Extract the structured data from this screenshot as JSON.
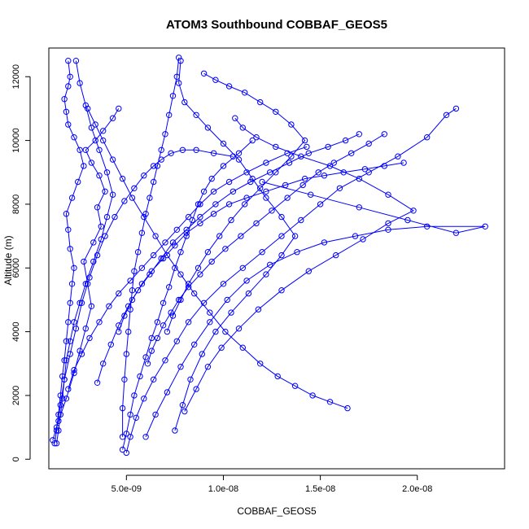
{
  "chart_data": {
    "type": "line",
    "title": "ATOM3 Southbound COBBAF_GEOS5",
    "xlabel": "COBBAF_GEOS5",
    "ylabel": "Altitude (m)",
    "xlim": [
      1e-09,
      2.45e-08
    ],
    "ylim": [
      -300,
      12900
    ],
    "x_ticks": [
      5e-09,
      1e-08,
      1.5e-08,
      2e-08
    ],
    "x_tick_labels": [
      "5.0e-09",
      "1.0e-08",
      "1.5e-08",
      "2.0e-08"
    ],
    "y_ticks": [
      0,
      2000,
      4000,
      6000,
      8000,
      10000,
      12000
    ],
    "y_tick_labels": [
      "0",
      "2000",
      "4000",
      "6000",
      "8000",
      "10000",
      "12000"
    ],
    "marker": "open-circle",
    "grid": false,
    "color": "#0000ff",
    "series": [
      {
        "x": [
          1.3e-09,
          1.4e-09,
          1.5e-09,
          1.6e-09,
          1.7e-09,
          1.8e-09,
          1.9e-09,
          2e-09,
          2.1e-09,
          2.2e-09,
          2.3e-09,
          2.1e-09,
          2e-09,
          1.9e-09,
          2.2e-09,
          2.5e-09,
          2.8e-09,
          2.6e-09,
          2.3e-09,
          2e-09,
          1.9e-09,
          1.8e-09,
          2e-09,
          2.1e-09,
          2e-09
        ],
        "y": [
          500,
          900,
          1400,
          2000,
          2600,
          3100,
          3700,
          4300,
          4900,
          5500,
          6000,
          6600,
          7200,
          7700,
          8200,
          8700,
          9200,
          9700,
          10100,
          10500,
          10900,
          11300,
          11700,
          12000,
          12500
        ]
      },
      {
        "x": [
          1.2e-09,
          1.5e-09,
          1.9e-09,
          2.3e-09,
          2.6e-09,
          2.9e-09,
          3.2e-09,
          3e-09,
          2.8e-09,
          3.3e-09,
          3.7e-09,
          3.5e-09,
          3.9e-09,
          3.6e-09,
          3.2e-09,
          2.9e-09,
          3.4e-09,
          3.8e-09,
          4.3e-09,
          4.6e-09
        ],
        "y": [
          600,
          1200,
          1900,
          2700,
          3400,
          4100,
          4800,
          5500,
          6200,
          6800,
          7300,
          7900,
          8400,
          8900,
          9300,
          9700,
          10000,
          10300,
          10700,
          11000
        ]
      },
      {
        "x": [
          4.8e-09,
          5e-09,
          5.2e-09,
          5.4e-09,
          5.7e-09,
          6e-09,
          6.3e-09,
          6.6e-09,
          6.9e-09,
          7.2e-09,
          7.5e-09,
          7.8e-09,
          8.1e-09,
          8.4e-09,
          8.7e-09,
          9e-09,
          9.4e-09,
          1e-08,
          1.08e-08,
          1.15e-08
        ],
        "y": [
          300,
          800,
          1400,
          2000,
          2600,
          3200,
          3800,
          4300,
          4900,
          5400,
          6000,
          6500,
          7000,
          7500,
          8000,
          8400,
          8800,
          9200,
          9600,
          10000
        ]
      },
      {
        "x": [
          5e-09,
          5.2e-09,
          5.5e-09,
          5.9e-09,
          6.4e-09,
          7e-09,
          7.6e-09,
          8.2e-09,
          9e-09,
          1e-08,
          1.1e-08,
          1.2e-08,
          1.3e-08,
          1.4e-08,
          1.5e-08,
          1.6e-08,
          1.75e-08,
          1.9e-08,
          2.05e-08,
          2.15e-08,
          2.2e-08
        ],
        "y": [
          200,
          700,
          1300,
          1900,
          2500,
          3100,
          3700,
          4300,
          4900,
          5500,
          6000,
          6500,
          7000,
          7500,
          8000,
          8500,
          9000,
          9500,
          10100,
          10800,
          11000
        ]
      },
      {
        "x": [
          6e-09,
          6.5e-09,
          7.1e-09,
          7.8e-09,
          8.5e-09,
          9.3e-09,
          1.02e-08,
          1.12e-08,
          1.24e-08,
          1.38e-08,
          1.52e-08,
          1.68e-08,
          1.85e-08,
          2.05e-08,
          2.35e-08,
          2.2e-08,
          1.95e-08,
          1.7e-08,
          1.45e-08,
          1.2e-08
        ],
        "y": [
          700,
          1400,
          2100,
          2900,
          3600,
          4300,
          5000,
          5600,
          6100,
          6500,
          6800,
          7000,
          7200,
          7300,
          7300,
          7100,
          7500,
          7900,
          8300,
          8700
        ]
      },
      {
        "x": [
          7.5e-09,
          7.9e-09,
          8.3e-09,
          8.9e-09,
          9.6e-09,
          1.04e-08,
          1.13e-08,
          1.22e-08,
          1.3e-08,
          1.37e-08,
          1.3e-08,
          1.22e-08,
          1.15e-08,
          1.08e-08,
          1e-08,
          9.2e-09,
          8.6e-09,
          8e-09,
          7.7e-09,
          7.8e-09
        ],
        "y": [
          900,
          1700,
          2500,
          3300,
          4000,
          4600,
          5200,
          5800,
          6400,
          7000,
          7600,
          8200,
          8800,
          9400,
          9900,
          10400,
          10800,
          11200,
          11800,
          12500
        ]
      },
      {
        "x": [
          1.4e-09,
          1.6e-09,
          1.8e-09,
          2.1e-09,
          2.4e-09,
          2.7e-09,
          3.1e-09,
          3.5e-09,
          3.9e-09,
          4.4e-09,
          4.9e-09,
          5.4e-09,
          5.9e-09,
          6.4e-09,
          6.8e-09,
          7.3e-09,
          7.9e-09,
          8.6e-09,
          9.5e-09,
          1.05e-08
        ],
        "y": [
          1000,
          1700,
          2500,
          3300,
          4100,
          4900,
          5700,
          6400,
          7000,
          7600,
          8100,
          8500,
          8900,
          9200,
          9400,
          9600,
          9700,
          9700,
          9600,
          9500
        ]
      },
      {
        "x": [
          8e-09,
          8.6e-09,
          9.2e-09,
          9.9e-09,
          1.08e-08,
          1.18e-08,
          1.3e-08,
          1.44e-08,
          1.58e-08,
          1.72e-08,
          1.85e-08,
          1.98e-08,
          1.85e-08,
          1.7e-08,
          1.55e-08,
          1.4e-08,
          1.27e-08,
          1.17e-08,
          1.1e-08,
          1.06e-08
        ],
        "y": [
          1500,
          2200,
          2900,
          3500,
          4100,
          4700,
          5300,
          5900,
          6400,
          6900,
          7400,
          7800,
          8300,
          8800,
          9200,
          9500,
          9800,
          10100,
          10400,
          10700
        ]
      },
      {
        "x": [
          2e-09,
          2.3e-09,
          2.7e-09,
          3.1e-09,
          3.6e-09,
          4.1e-09,
          4.6e-09,
          5.2e-09,
          5.8e-09,
          6.4e-09,
          7e-09,
          7.6e-09,
          8.2e-09,
          8.8e-09,
          9.5e-09,
          1.03e-08,
          1.12e-08,
          1.22e-08,
          1.33e-08,
          1.43e-08
        ],
        "y": [
          2200,
          2800,
          3300,
          3800,
          4300,
          4800,
          5200,
          5600,
          6000,
          6400,
          6800,
          7200,
          7600,
          8000,
          8400,
          8700,
          9000,
          9300,
          9600,
          9800
        ]
      },
      {
        "x": [
          3.5e-09,
          3.8e-09,
          4.2e-09,
          4.6e-09,
          5.1e-09,
          5.6e-09,
          6.2e-09,
          6.8e-09,
          7.4e-09,
          8.1e-09,
          8.8e-09,
          9.6e-09,
          1.05e-08,
          1.14e-08,
          1.24e-08,
          1.34e-08,
          1.44e-08,
          1.54e-08,
          1.63e-08,
          1.7e-08
        ],
        "y": [
          2400,
          3000,
          3600,
          4200,
          4800,
          5300,
          5800,
          6300,
          6800,
          7200,
          7600,
          8000,
          8400,
          8700,
          9000,
          9300,
          9600,
          9800,
          10000,
          10200
        ]
      },
      {
        "x": [
          4.6e-09,
          4.9e-09,
          5.3e-09,
          5.8e-09,
          6.3e-09,
          6.9e-09,
          7.5e-09,
          8.1e-09,
          8.8e-09,
          9.5e-09,
          1.03e-08,
          1.12e-08,
          1.22e-08,
          1.32e-08,
          1.42e-08,
          1.52e-08,
          1.62e-08,
          1.73e-08,
          1.83e-08,
          1.93e-08
        ],
        "y": [
          4000,
          4500,
          5000,
          5500,
          5900,
          6300,
          6700,
          7100,
          7400,
          7700,
          8000,
          8200,
          8400,
          8600,
          8800,
          8900,
          9000,
          9100,
          9200,
          9300
        ]
      },
      {
        "x": [
          7.7e-09,
          7.6e-09,
          7.4e-09,
          7.2e-09,
          7e-09,
          6.8e-09,
          6.6e-09,
          6.4e-09,
          6.2e-09,
          6e-09,
          5.8e-09,
          5.6e-09,
          5.4e-09,
          5.3e-09,
          5.2e-09,
          5.1e-09,
          5e-09,
          4.9e-09,
          4.8e-09,
          4.8e-09
        ],
        "y": [
          12600,
          12000,
          11400,
          10800,
          10200,
          9700,
          9200,
          8700,
          8200,
          7700,
          7100,
          6500,
          5900,
          5300,
          4700,
          4000,
          3300,
          2500,
          1600,
          700
        ]
      },
      {
        "x": [
          2.4e-09,
          2.6e-09,
          2.9e-09,
          3.2e-09,
          3.6e-09,
          4e-09,
          4.3e-09,
          4e-09,
          3.7e-09,
          3.3e-09,
          2.9e-09,
          2.6e-09,
          2.3e-09,
          2.1e-09,
          1.9e-09,
          1.8e-09,
          1.7e-09,
          1.6e-09,
          1.5e-09,
          1.4e-09
        ],
        "y": [
          12500,
          11800,
          11100,
          10400,
          9700,
          9000,
          8300,
          7600,
          6900,
          6200,
          5500,
          4900,
          4300,
          3700,
          3100,
          2500,
          1900,
          1400,
          900,
          500
        ]
      },
      {
        "x": [
          9e-09,
          9.6e-09,
          1.03e-08,
          1.11e-08,
          1.19e-08,
          1.27e-08,
          1.35e-08,
          1.42e-08,
          1.35e-08,
          1.27e-08,
          1.19e-08,
          1.11e-08,
          1.04e-08,
          9.8e-09,
          9.2e-09,
          8.7e-09,
          8.2e-09,
          7.8e-09,
          7.4e-09,
          7.1e-09
        ],
        "y": [
          12100,
          11900,
          11700,
          11500,
          11200,
          10900,
          10500,
          10000,
          9500,
          9000,
          8500,
          8000,
          7500,
          7000,
          6500,
          6000,
          5500,
          5000,
          4500,
          4000
        ]
      },
      {
        "x": [
          6.1e-09,
          6.3e-09,
          6.6e-09,
          6.9e-09,
          7.3e-09,
          7.7e-09,
          8.2e-09,
          8.8e-09,
          9.4e-09,
          1.01e-08,
          1.09e-08,
          1.17e-08,
          1.25e-08,
          1.33e-08,
          1.41e-08,
          1.49e-08,
          1.57e-08,
          1.66e-08,
          1.75e-08,
          1.83e-08
        ],
        "y": [
          3000,
          3400,
          3800,
          4200,
          4600,
          5000,
          5400,
          5800,
          6200,
          6600,
          7000,
          7400,
          7800,
          8200,
          8600,
          9000,
          9300,
          9600,
          9900,
          10200
        ]
      },
      {
        "x": [
          3e-09,
          3.4e-09,
          3.8e-09,
          4.3e-09,
          4.8e-09,
          5.3e-09,
          5.9e-09,
          6.5e-09,
          7.1e-09,
          7.8e-09,
          8.5e-09,
          9.3e-09,
          1.01e-08,
          1.1e-08,
          1.19e-08,
          1.28e-08,
          1.37e-08,
          1.46e-08,
          1.55e-08,
          1.64e-08
        ],
        "y": [
          11000,
          10500,
          10000,
          9400,
          8800,
          8200,
          7600,
          7000,
          6400,
          5800,
          5200,
          4600,
          4000,
          3500,
          3000,
          2600,
          2300,
          2000,
          1800,
          1600
        ]
      }
    ]
  }
}
